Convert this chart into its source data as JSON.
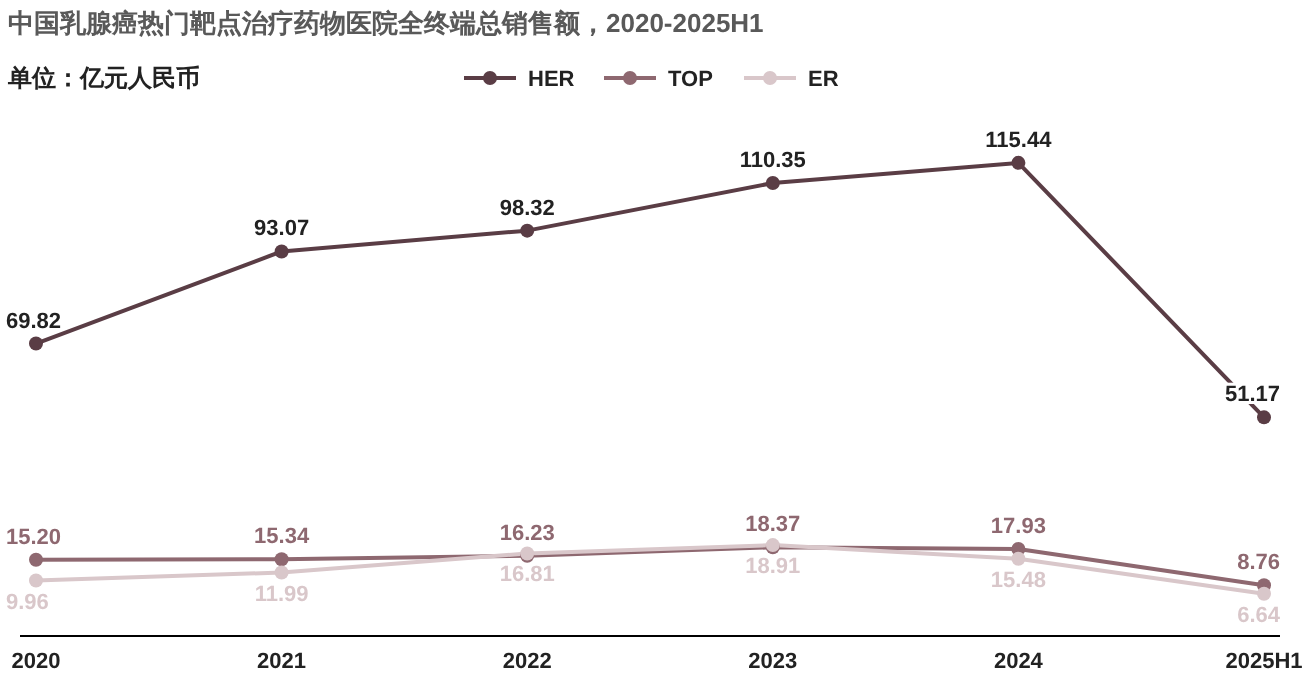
{
  "chart_data": {
    "type": "line",
    "title": "中国乳腺癌热门靶点治疗药物医院全终端总销售额，2020-2025H1",
    "subtitle": "单位：亿元人民币",
    "categories": [
      "2020",
      "2021",
      "2022",
      "2023",
      "2024",
      "2025H1"
    ],
    "legend": "top",
    "marker": "circle",
    "line_style": "solid",
    "series": [
      {
        "name": "HER",
        "color": "#5a3d45",
        "values": [
          69.82,
          93.07,
          98.32,
          110.35,
          115.44,
          51.17
        ],
        "value_labels": [
          "69.82",
          "93.07",
          "98.32",
          "110.35",
          "115.44",
          "51.17"
        ]
      },
      {
        "name": "TOP",
        "color": "#8e6870",
        "values": [
          15.2,
          15.34,
          16.23,
          18.37,
          17.93,
          8.76
        ],
        "value_labels": [
          "15.20",
          "15.34",
          "16.23",
          "18.37",
          "17.93",
          "8.76"
        ]
      },
      {
        "name": "ER",
        "color": "#d9c7ca",
        "values": [
          9.96,
          11.99,
          16.81,
          18.91,
          15.48,
          6.64
        ],
        "value_labels": [
          "9.96",
          "11.99",
          "16.81",
          "18.91",
          "15.48",
          "6.64"
        ]
      }
    ]
  }
}
